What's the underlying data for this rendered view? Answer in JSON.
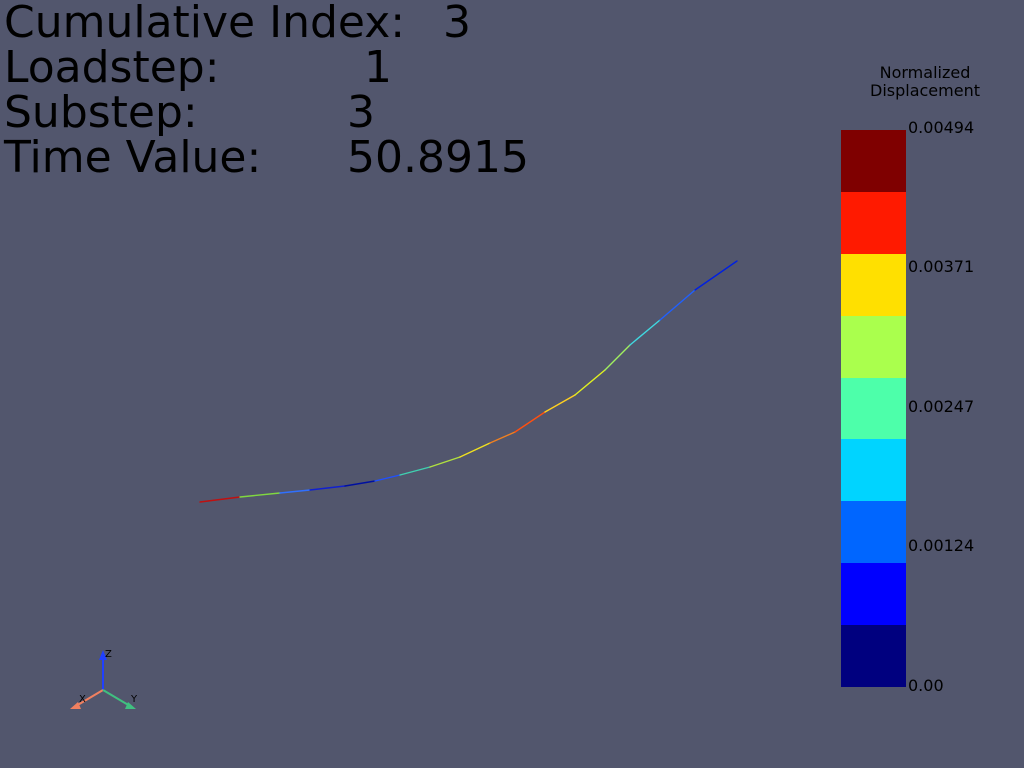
{
  "info": {
    "cumulative_index_label": "Cumulative Index:",
    "cumulative_index_value": "3",
    "loadstep_label": "Loadstep:",
    "loadstep_value": "1",
    "substep_label": "Substep:",
    "substep_value": "3",
    "time_value_label": "Time Value:",
    "time_value_value": "50.8915"
  },
  "scalar_bar": {
    "title_line1": "Normalized",
    "title_line2": "Displacement",
    "ticks": [
      "0.00494",
      "0.00371",
      "0.00247",
      "0.00124",
      "0.00"
    ],
    "colors": [
      "#7f0000",
      "#ff1a00",
      "#ffe000",
      "#aaff4d",
      "#4dffaa",
      "#00d4ff",
      "#0066ff",
      "#0000ff",
      "#00007f"
    ]
  },
  "axes": {
    "x_label": "X",
    "y_label": "Y",
    "z_label": "Z",
    "x_color": "#f08060",
    "y_color": "#40c080",
    "z_color": "#2040ff"
  }
}
